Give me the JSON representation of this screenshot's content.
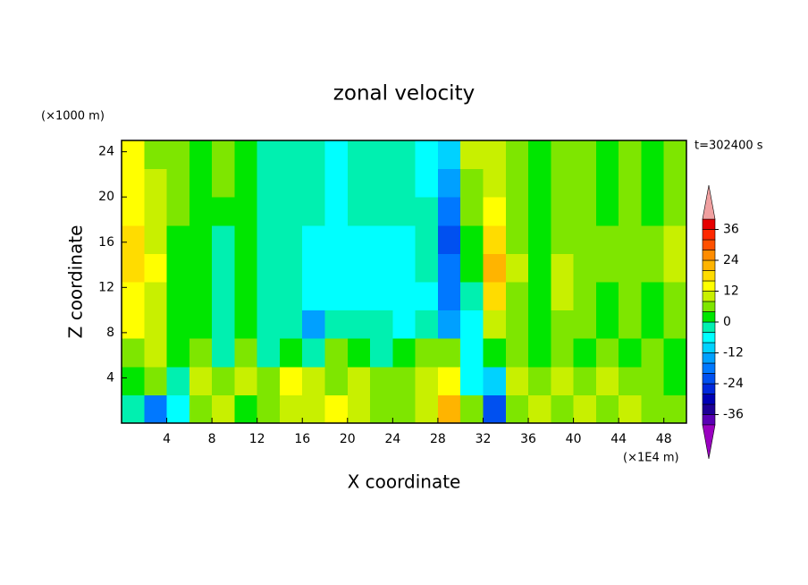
{
  "chart_data": {
    "type": "contour",
    "title": "zonal velocity",
    "x_label": "X coordinate",
    "y_label": "Z coordinate",
    "x_unit": "(×1E4 m)",
    "y_unit": "(×1000 m)",
    "time_label": "t=302400 s",
    "xlim": [
      0,
      50
    ],
    "ylim": [
      0,
      25
    ],
    "xticks": [
      4,
      8,
      12,
      16,
      20,
      24,
      28,
      32,
      36,
      40,
      44,
      48
    ],
    "yticks": [
      4,
      8,
      12,
      16,
      20,
      24
    ],
    "x": [
      1,
      3,
      5,
      7,
      9,
      11,
      13,
      15,
      17,
      19,
      21,
      23,
      25,
      27,
      29,
      31,
      33,
      35,
      37,
      39,
      41,
      43,
      45,
      47,
      49
    ],
    "z": [
      1.25,
      3.75,
      6.25,
      8.75,
      11.25,
      13.75,
      16.25,
      18.75,
      21.25,
      23.75
    ],
    "values": [
      [
        -4,
        -20,
        -8,
        4,
        8,
        0,
        6,
        10,
        8,
        12,
        8,
        6,
        4,
        10,
        20,
        4,
        -24,
        4,
        8,
        6,
        10,
        4,
        8,
        6,
        4
      ],
      [
        0,
        4,
        -4,
        8,
        4,
        8,
        4,
        12,
        8,
        4,
        8,
        4,
        6,
        8,
        12,
        -8,
        -12,
        8,
        4,
        8,
        4,
        8,
        4,
        6,
        2
      ],
      [
        4,
        8,
        0,
        4,
        -4,
        4,
        -4,
        0,
        -4,
        4,
        0,
        -4,
        0,
        4,
        4,
        -8,
        0,
        4,
        0,
        4,
        0,
        4,
        0,
        4,
        0
      ],
      [
        12,
        8,
        0,
        2,
        -4,
        2,
        -4,
        -4,
        -16,
        -4,
        -4,
        -4,
        -6,
        -4,
        -16,
        -6,
        8,
        4,
        0,
        6,
        4,
        2,
        4,
        0,
        4
      ],
      [
        14,
        10,
        2,
        2,
        -2,
        2,
        -4,
        -4,
        -8,
        -8,
        -8,
        -6,
        -8,
        -6,
        -20,
        -4,
        16,
        6,
        2,
        8,
        4,
        2,
        4,
        2,
        6
      ],
      [
        16,
        12,
        2,
        0,
        -2,
        2,
        -2,
        -4,
        -6,
        -8,
        -8,
        -6,
        -8,
        -4,
        -20,
        0,
        20,
        8,
        2,
        8,
        4,
        4,
        6,
        4,
        8
      ],
      [
        16,
        10,
        2,
        0,
        -2,
        2,
        -2,
        -4,
        -6,
        -8,
        -6,
        -6,
        -6,
        -4,
        -24,
        0,
        16,
        6,
        2,
        6,
        4,
        4,
        6,
        4,
        8
      ],
      [
        14,
        10,
        4,
        0,
        2,
        0,
        -2,
        -4,
        -4,
        -6,
        -4,
        -4,
        -4,
        -4,
        -20,
        4,
        12,
        4,
        2,
        4,
        4,
        2,
        4,
        2,
        6
      ],
      [
        12,
        8,
        4,
        2,
        4,
        0,
        -2,
        -4,
        -4,
        -6,
        -4,
        -4,
        -4,
        -6,
        -14,
        6,
        10,
        4,
        2,
        6,
        4,
        2,
        4,
        2,
        4
      ],
      [
        12,
        6,
        4,
        2,
        4,
        0,
        -2,
        -4,
        -4,
        -6,
        -4,
        -4,
        -4,
        -6,
        -12,
        8,
        10,
        4,
        2,
        6,
        4,
        2,
        4,
        2,
        4
      ]
    ],
    "levels": [
      -40,
      -36,
      -32,
      -28,
      -24,
      -20,
      -16,
      -12,
      -8,
      -4,
      0,
      4,
      8,
      12,
      16,
      20,
      24,
      28,
      32,
      36,
      40
    ],
    "colors": [
      "#9a00c0",
      "#5a00b4",
      "#1e0096",
      "#0000b4",
      "#0028dc",
      "#0050f0",
      "#0078ff",
      "#00a0ff",
      "#00d2ff",
      "#00ffff",
      "#00f0b0",
      "#00e600",
      "#7ee600",
      "#c8f000",
      "#ffff00",
      "#ffdc00",
      "#ffb400",
      "#ff8c00",
      "#ff5000",
      "#ff2800",
      "#e60000",
      "#f0a0a0"
    ],
    "colorbar_ticks": [
      -36,
      -24,
      -12,
      0,
      12,
      24,
      36
    ]
  }
}
